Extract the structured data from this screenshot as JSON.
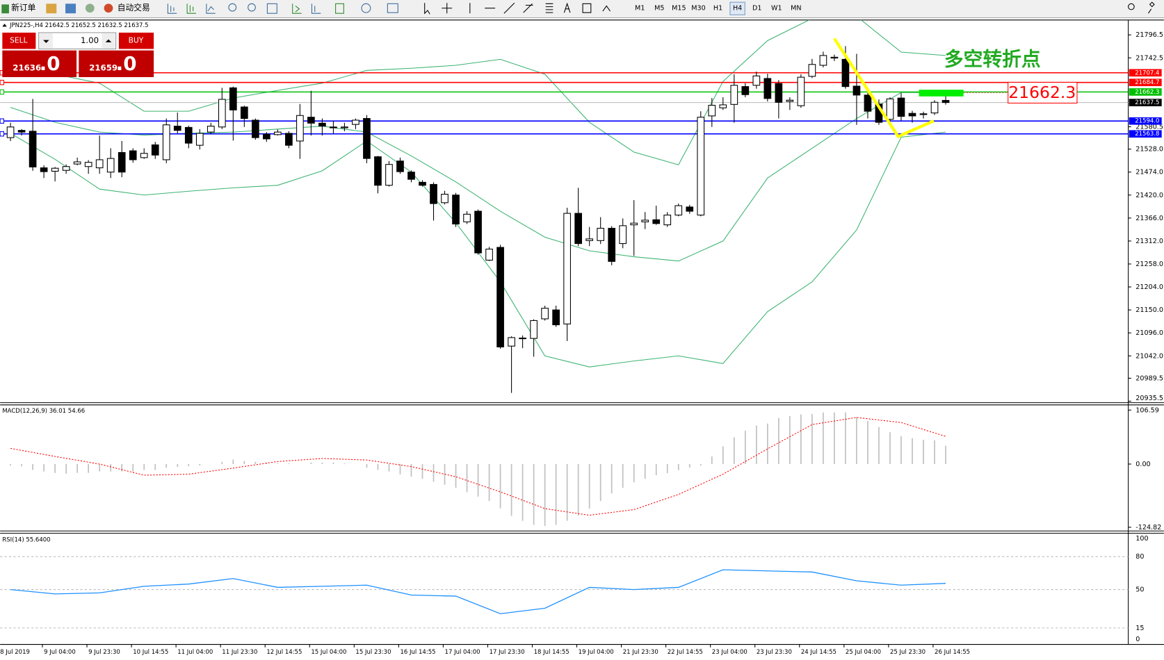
{
  "toolbar": {
    "buttons": [
      "新订单",
      "自动交易"
    ],
    "timeframes": [
      "M1",
      "M5",
      "M15",
      "M30",
      "H1",
      "H4",
      "D1",
      "W1",
      "MN"
    ],
    "active_timeframe": "H4"
  },
  "order_panel": {
    "sell": "SELL",
    "buy": "BUY",
    "lots": "1.00",
    "bid_main": "21636",
    "bid_frac": ".0",
    "ask_main": "21659",
    "ask_frac": ".0"
  },
  "chart": {
    "header": "JPN225-,H4  21642.5 21652.5 21632.5 21637.5",
    "ylim": [
      20935.5,
      21831.4
    ],
    "yticks": [
      21796.5,
      21742.5,
      21580.5,
      {
        "value": 21528,
        "label": "21528.0"
      },
      {
        "value": 21474,
        "label": "21474.0"
      },
      {
        "value": 21420,
        "label": "21420.0"
      },
      {
        "value": 21366,
        "label": "21366.0"
      },
      {
        "value": 21312,
        "label": "21312.0"
      },
      {
        "value": 21258,
        "label": "21258.0"
      },
      {
        "value": 21204,
        "label": "21204.0"
      },
      {
        "value": 21150,
        "label": "21150.0"
      },
      {
        "value": 21096,
        "label": "21096.0"
      },
      {
        "value": 21042,
        "label": "21042.0"
      },
      20989.5,
      20935.5
    ],
    "candles": {
      "open": [
        21555,
        21572,
        21570,
        21484,
        21476,
        21478,
        21493,
        21487,
        21484,
        21474,
        21520,
        21524,
        21508,
        21538,
        21503,
        21582,
        21579,
        21537,
        21568,
        21580,
        21672,
        21627,
        21596,
        21563,
        21562,
        21565,
        21547,
        21603,
        21589,
        21580,
        21578,
        21586,
        21600,
        21510,
        21443,
        21500,
        21474,
        21450,
        21445,
        21402,
        21420,
        21357,
        21382,
        21267,
        21297,
        21065,
        21083,
        21083,
        21129,
        21150,
        21117,
        21377,
        21313,
        21313,
        21342,
        21306,
        21350,
        21357,
        21362,
        21350,
        21373,
        21392,
        21373,
        21606,
        21625,
        21633,
        21675,
        21678,
        21694,
        21682,
        21640,
        21630,
        21699,
        21725,
        21742,
        21739,
        21676,
        21655,
        21634,
        21598,
        21648,
        21612,
        21610,
        21613,
        21642.5
      ],
      "high": [
        21590,
        21575,
        21646,
        21490,
        21486,
        21492,
        21508,
        21502,
        21560,
        21530,
        21547,
        21530,
        21530,
        21545,
        21600,
        21614,
        21583,
        21575,
        21590,
        21672,
        21675,
        21630,
        21600,
        21568,
        21574,
        21570,
        21634,
        21665,
        21600,
        21595,
        21590,
        21600,
        21608,
        21512,
        21500,
        21508,
        21478,
        21455,
        21450,
        21430,
        21425,
        21382,
        21386,
        21298,
        21303,
        21088,
        21090,
        21128,
        21160,
        21160,
        21390,
        21437,
        21345,
        21368,
        21347,
        21365,
        21408,
        21380,
        21395,
        21380,
        21400,
        21397,
        21617,
        21648,
        21650,
        21704,
        21683,
        21710,
        21705,
        21690,
        21650,
        21704,
        21740,
        21757,
        21750,
        21770,
        21752,
        21660,
        21645,
        21650,
        21660,
        21618,
        21616,
        21643,
        21652.5
      ],
      "low": [
        21547,
        21560,
        21477,
        21460,
        21452,
        21470,
        21490,
        21470,
        21470,
        21460,
        21462,
        21496,
        21505,
        21505,
        21495,
        21565,
        21530,
        21527,
        21563,
        21575,
        21548,
        21580,
        21550,
        21545,
        21560,
        21530,
        21505,
        21560,
        21560,
        21565,
        21570,
        21575,
        21495,
        21424,
        21440,
        21470,
        21450,
        21440,
        21360,
        21398,
        21345,
        21352,
        21280,
        21265,
        21059,
        20955,
        21060,
        21040,
        21125,
        21110,
        21077,
        21300,
        21300,
        21305,
        21255,
        21295,
        21277,
        21340,
        21350,
        21345,
        21370,
        21376,
        21370,
        21580,
        21620,
        21590,
        21650,
        21670,
        21640,
        21600,
        21620,
        21625,
        21695,
        21720,
        21735,
        21670,
        21585,
        21600,
        21585,
        21590,
        21595,
        21590,
        21600,
        21608,
        21632.5
      ],
      "close": [
        21580,
        21568,
        21486,
        21475,
        21483,
        21487,
        21498,
        21497,
        21503,
        21506,
        21474,
        21503,
        21518,
        21514,
        21585,
        21572,
        21542,
        21565,
        21582,
        21645,
        21620,
        21600,
        21555,
        21552,
        21568,
        21537,
        21607,
        21589,
        21582,
        21578,
        21580,
        21596,
        21506,
        21443,
        21492,
        21475,
        21457,
        21443,
        21400,
        21422,
        21352,
        21375,
        21284,
        21293,
        21063,
        21085,
        21084,
        21125,
        21154,
        21115,
        21377,
        21306,
        21317,
        21342,
        21264,
        21348,
        21354,
        21361,
        21353,
        21373,
        21395,
        21382,
        21603,
        21631,
        21632,
        21678,
        21656,
        21700,
        21647,
        21638,
        21643,
        21697,
        21727,
        21748,
        21744,
        21675,
        21655,
        21617,
        21591,
        21646,
        21605,
        21606,
        21611,
        21638,
        21637.5
      ]
    },
    "bands": {
      "color": "#3cb371",
      "upper": [
        21721,
        21704,
        21683,
        21617,
        21617,
        21648,
        21666,
        21683,
        21713,
        21718,
        21725,
        21739,
        21704,
        21591,
        21521,
        21491,
        21687,
        21783,
        21835,
        21840,
        21756,
        21748
      ],
      "middle": [
        21626,
        21591,
        21568,
        21561,
        21565,
        21568,
        21575,
        21582,
        21568,
        21512,
        21451,
        21382,
        21321,
        21289,
        21275,
        21265,
        21312,
        21460,
        21530,
        21600,
        21661,
        21661
      ],
      "lower": [
        21565,
        21504,
        21434,
        21420,
        21429,
        21437,
        21443,
        21477,
        21547,
        21474,
        21355,
        21216,
        21042,
        21016,
        21030,
        21042,
        21024,
        21146,
        21216,
        21338,
        21556,
        21568
      ]
    },
    "levels": [
      {
        "value": 21707.4,
        "color": "#ff0000"
      },
      {
        "value": 21684.7,
        "color": "#ff0000"
      },
      {
        "value": 21662.3,
        "color": "#00c000"
      },
      {
        "value": 21594,
        "label": "21594.0",
        "color": "#0000ff"
      },
      {
        "value": 21563.8,
        "color": "#0000ff"
      }
    ],
    "current_price": 21637.5,
    "annotation": {
      "text": "多空转折点",
      "price_label": 21662.3
    }
  },
  "macd": {
    "header": "MACD(12,26,9) 36.01 54.66",
    "ylim": [
      -124.82,
      106.59
    ],
    "yticks": [
      106.59,
      {
        "value": 0,
        "label": "0.00"
      },
      -124.82
    ],
    "histogram": [
      -2.9,
      -4.4,
      -11.7,
      -14.6,
      -17.5,
      -19,
      -17.5,
      -17.5,
      -14.6,
      -14.6,
      -14.6,
      -14.6,
      -11.7,
      -11.7,
      -7.3,
      -5.8,
      -4.4,
      -2.9,
      0,
      4.4,
      8.8,
      5.8,
      4.4,
      2.9,
      1.5,
      1.5,
      0,
      2.9,
      2.9,
      2.9,
      1.5,
      0,
      -7.3,
      -11.7,
      -14.6,
      -20.4,
      -24.8,
      -29.2,
      -35,
      -40.9,
      -46.7,
      -55.5,
      -64.2,
      -73,
      -87.6,
      -102.2,
      -112,
      -120,
      -122,
      -120,
      -112,
      -102,
      -88,
      -73,
      -58,
      -47,
      -36,
      -29,
      -22,
      -18,
      -12,
      -7,
      -3,
      15,
      35,
      53,
      66,
      76,
      80,
      91,
      95,
      98,
      99,
      102,
      102,
      102,
      93,
      85,
      73,
      63,
      55,
      51,
      48,
      47,
      36.01
    ],
    "signal": [
      31,
      15,
      0,
      -22,
      -20,
      -8,
      5,
      11,
      8,
      -5,
      -25,
      -55,
      -88,
      -101,
      -90,
      -60,
      -20,
      30,
      78,
      92,
      82,
      54.66
    ]
  },
  "rsi": {
    "header": "RSI(14) 55.6400",
    "ylim": [
      0,
      100
    ],
    "yticks": [
      100,
      80,
      50,
      15,
      0
    ],
    "color": "#1e90ff",
    "values": [
      50,
      46,
      47,
      53,
      55,
      60,
      52,
      53,
      54,
      45,
      44,
      28,
      33,
      52,
      50,
      52,
      68,
      67,
      66,
      58,
      54,
      55.64
    ]
  },
  "time_labels": [
    "8 Jul 2019",
    "9 Jul 04:00",
    "9 Jul 23:30",
    "10 Jul 14:55",
    "11 Jul 04:00",
    "11 Jul 23:30",
    "12 Jul 14:55",
    "15 Jul 04:00",
    "15 Jul 23:30",
    "16 Jul 14:55",
    "17 Jul 04:00",
    "17 Jul 23:30",
    "18 Jul 14:55",
    "19 Jul 04:00",
    "21 Jul 23:30",
    "22 Jul 14:55",
    "23 Jul 04:00",
    "23 Jul 23:30",
    "24 Jul 14:55",
    "25 Jul 04:00",
    "25 Jul 23:30",
    "26 Jul 14:55"
  ]
}
